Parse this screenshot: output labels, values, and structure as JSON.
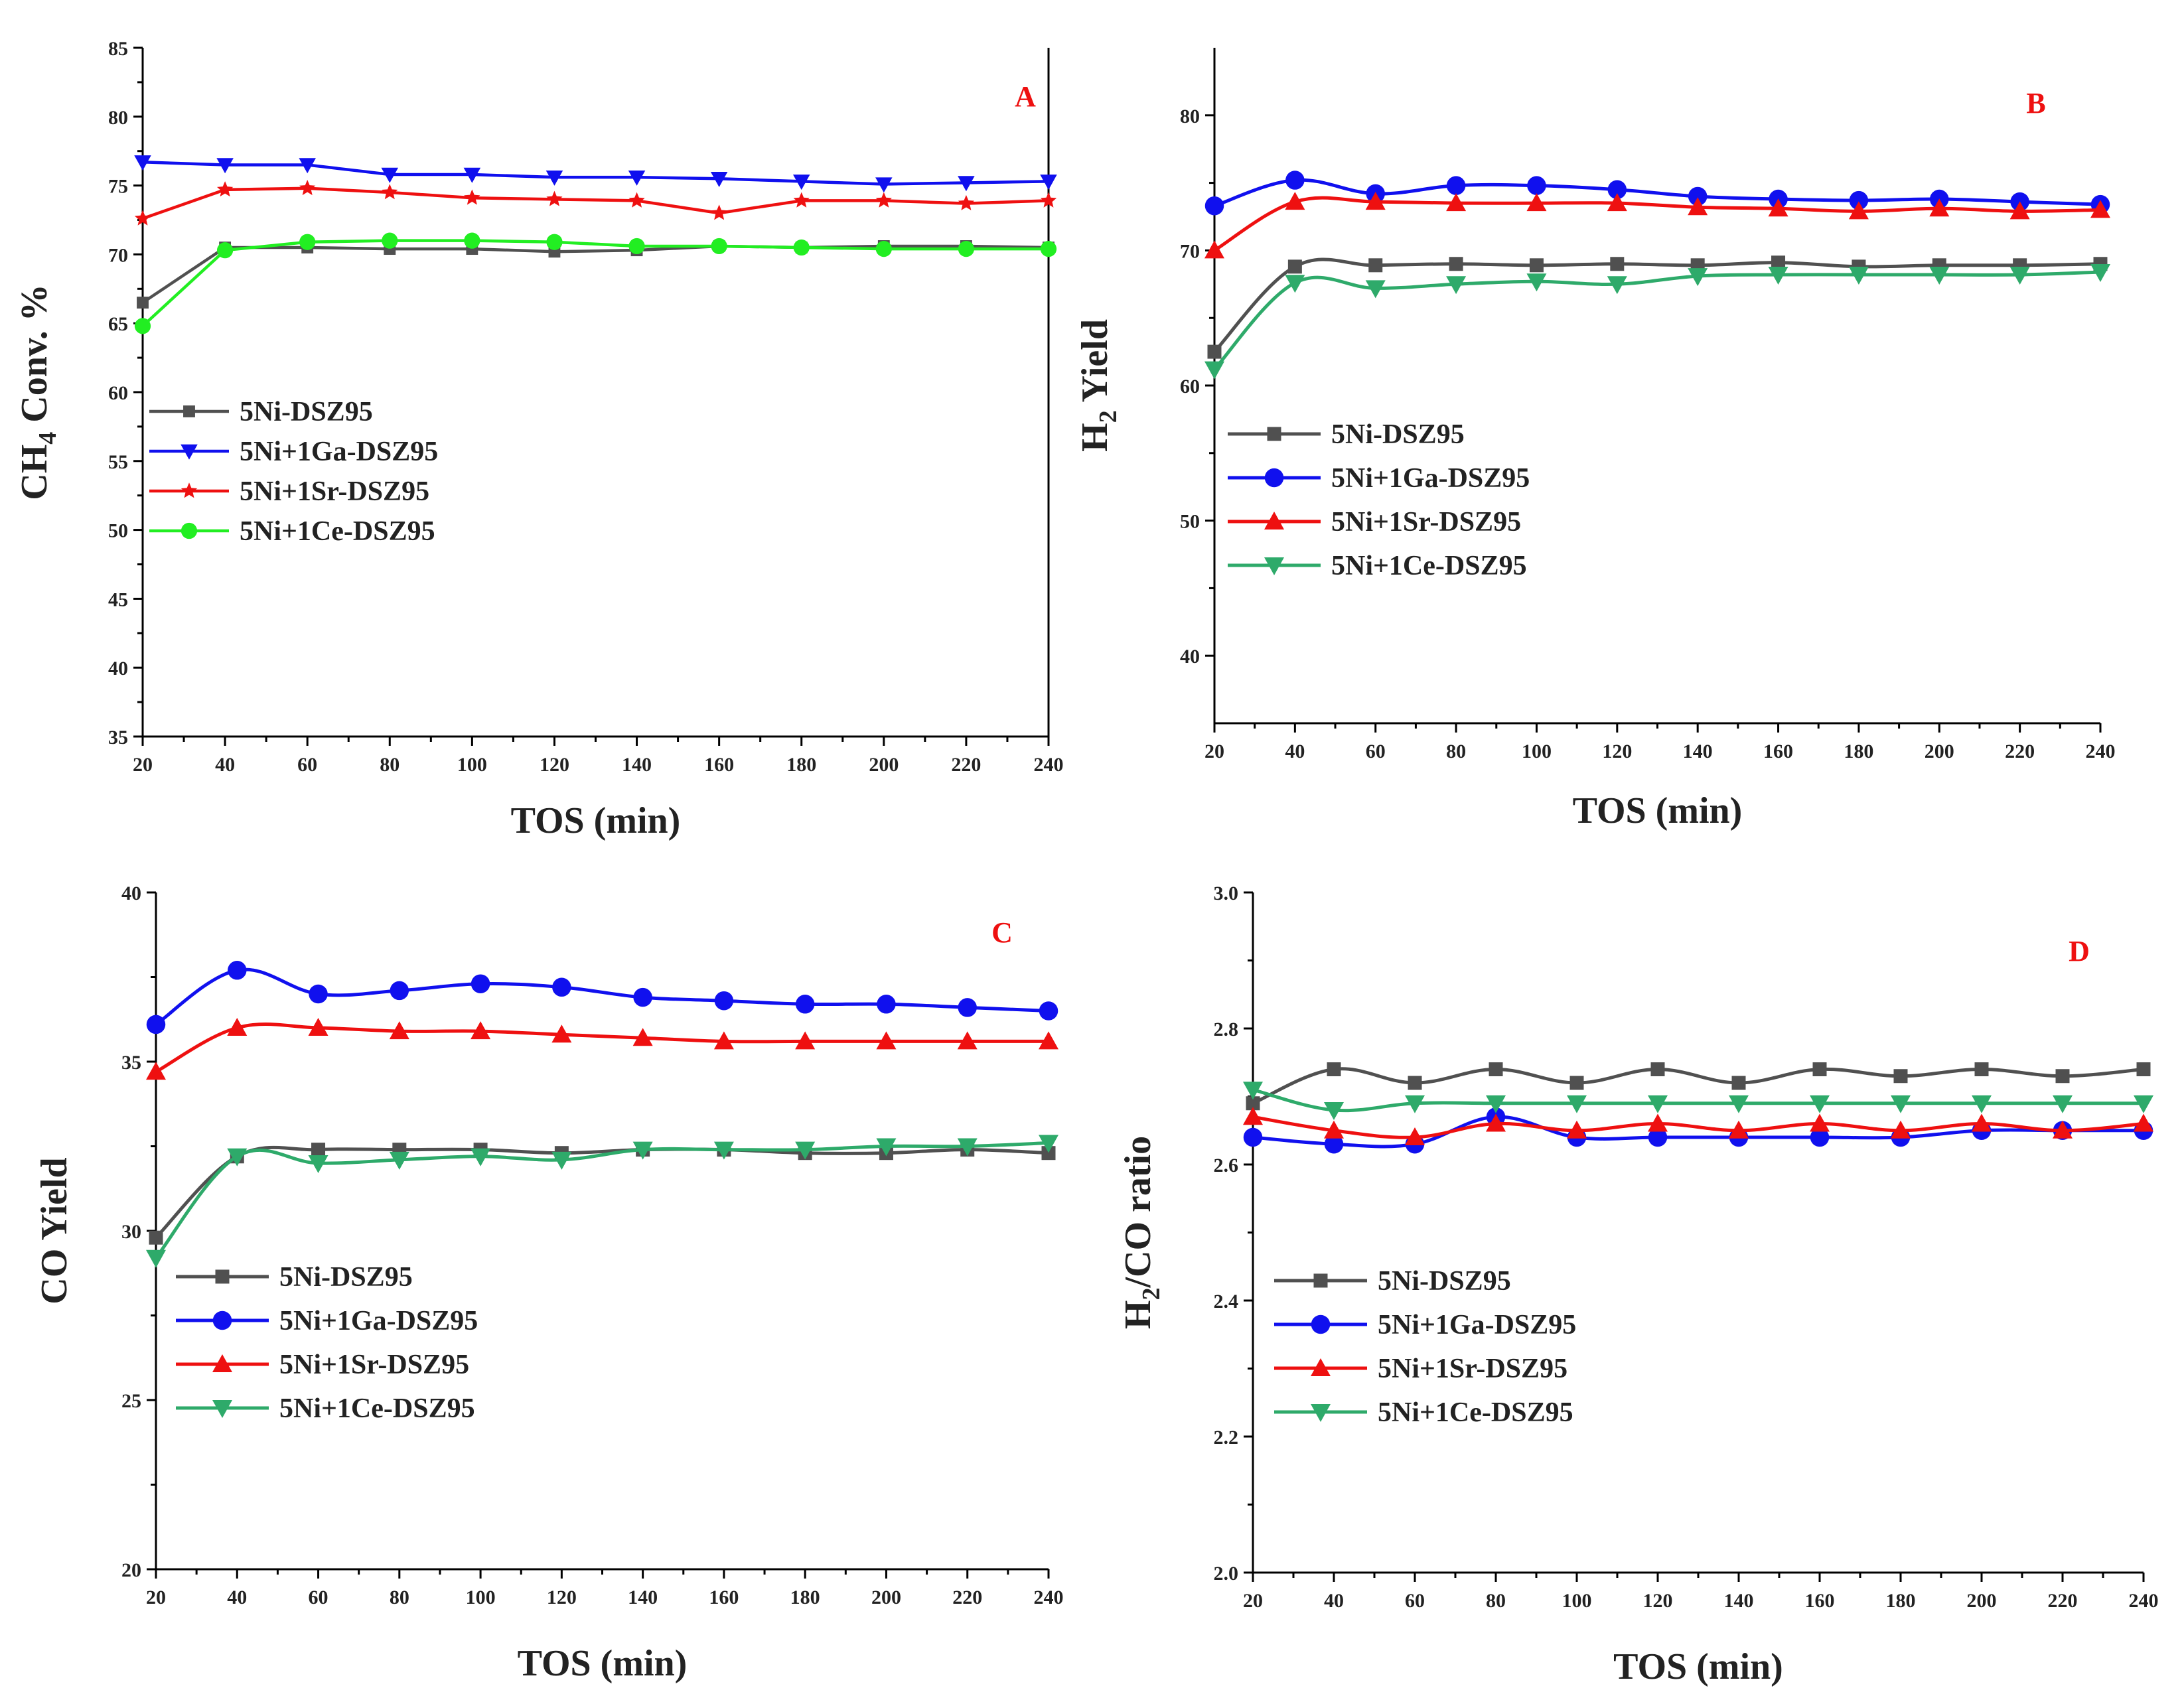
{
  "colors": {
    "5Ni-DSZ95": "#505050",
    "5Ni+1Ga-DSZ95": "#1010ee",
    "5Ni+1Sr-DSZ95": "#ee1010",
    "5Ni+1Ce-DSZ95_A": "#22ee22",
    "5Ni+1Ce-DSZ95": "#2eaa6a",
    "panel_letter": "#ee1010"
  },
  "chart_data": [
    {
      "type": "line",
      "panel_letter": "A",
      "xlabel": "TOS (min)",
      "ylabel": "CH4 Conv. %",
      "xlim": [
        20,
        240
      ],
      "ylim": [
        35,
        85
      ],
      "x_ticks": [
        20,
        40,
        60,
        80,
        100,
        120,
        140,
        160,
        180,
        200,
        220,
        240
      ],
      "y_ticks": [
        35,
        40,
        45,
        50,
        55,
        60,
        65,
        70,
        75,
        80,
        85
      ],
      "x": [
        20,
        40,
        60,
        80,
        100,
        120,
        140,
        160,
        180,
        200,
        220,
        240
      ],
      "legend_position": "middle-left",
      "series": [
        {
          "name": "5Ni-DSZ95",
          "marker": "square",
          "values": [
            66.5,
            70.5,
            70.5,
            70.4,
            70.4,
            70.2,
            70.3,
            70.6,
            70.5,
            70.6,
            70.6,
            70.5
          ]
        },
        {
          "name": "5Ni+1Ga-DSZ95",
          "marker": "triangle-down",
          "values": [
            76.7,
            76.5,
            76.5,
            75.8,
            75.8,
            75.6,
            75.6,
            75.5,
            75.3,
            75.1,
            75.2,
            75.3
          ]
        },
        {
          "name": "5Ni+1Sr-DSZ95",
          "marker": "star",
          "values": [
            72.6,
            74.7,
            74.8,
            74.5,
            74.1,
            74.0,
            73.9,
            73.0,
            73.9,
            73.9,
            73.7,
            73.9
          ]
        },
        {
          "name": "5Ni+1Ce-DSZ95",
          "marker": "circle",
          "values": [
            64.8,
            70.3,
            70.9,
            71.0,
            71.0,
            70.9,
            70.6,
            70.6,
            70.5,
            70.4,
            70.4,
            70.4
          ]
        }
      ]
    },
    {
      "type": "line",
      "panel_letter": "B",
      "xlabel": "TOS (min)",
      "ylabel": "H2 Yield",
      "xlim": [
        20,
        240
      ],
      "ylim": [
        35,
        85
      ],
      "x_ticks": [
        20,
        40,
        60,
        80,
        100,
        120,
        140,
        160,
        180,
        200,
        220,
        240
      ],
      "y_ticks": [
        40,
        50,
        60,
        70,
        80
      ],
      "x": [
        20,
        40,
        60,
        80,
        100,
        120,
        140,
        160,
        180,
        200,
        220,
        240
      ],
      "legend_position": "middle-left",
      "series": [
        {
          "name": "5Ni-DSZ95",
          "marker": "square",
          "values": [
            62.5,
            68.8,
            68.9,
            69.0,
            68.9,
            69.0,
            68.9,
            69.1,
            68.8,
            68.9,
            68.9,
            69.0
          ]
        },
        {
          "name": "5Ni+1Ga-DSZ95",
          "marker": "circle",
          "values": [
            73.3,
            75.2,
            74.2,
            74.8,
            74.8,
            74.5,
            74.0,
            73.8,
            73.7,
            73.8,
            73.6,
            73.4
          ]
        },
        {
          "name": "5Ni+1Sr-DSZ95",
          "marker": "triangle-up",
          "values": [
            70.0,
            73.6,
            73.6,
            73.5,
            73.5,
            73.5,
            73.2,
            73.1,
            72.9,
            73.1,
            72.9,
            73.0
          ]
        },
        {
          "name": "5Ni+1Ce-DSZ95",
          "marker": "triangle-down",
          "values": [
            61.2,
            67.6,
            67.2,
            67.5,
            67.7,
            67.5,
            68.1,
            68.2,
            68.2,
            68.2,
            68.2,
            68.4
          ]
        }
      ]
    },
    {
      "type": "line",
      "panel_letter": "C",
      "xlabel": "TOS (min)",
      "ylabel": "CO Yield",
      "xlim": [
        20,
        240
      ],
      "ylim": [
        20,
        40
      ],
      "x_ticks": [
        20,
        40,
        60,
        80,
        100,
        120,
        140,
        160,
        180,
        200,
        220,
        240
      ],
      "y_ticks": [
        20,
        25,
        30,
        35,
        40
      ],
      "x": [
        20,
        40,
        60,
        80,
        100,
        120,
        140,
        160,
        180,
        200,
        220,
        240
      ],
      "legend_position": "middle-left",
      "series": [
        {
          "name": "5Ni-DSZ95",
          "marker": "square",
          "values": [
            29.8,
            32.2,
            32.4,
            32.4,
            32.4,
            32.3,
            32.4,
            32.4,
            32.3,
            32.3,
            32.4,
            32.3
          ]
        },
        {
          "name": "5Ni+1Ga-DSZ95",
          "marker": "circle",
          "values": [
            36.1,
            37.7,
            37.0,
            37.1,
            37.3,
            37.2,
            36.9,
            36.8,
            36.7,
            36.7,
            36.6,
            36.5
          ]
        },
        {
          "name": "5Ni+1Sr-DSZ95",
          "marker": "triangle-up",
          "values": [
            34.7,
            36.0,
            36.0,
            35.9,
            35.9,
            35.8,
            35.7,
            35.6,
            35.6,
            35.6,
            35.6,
            35.6
          ]
        },
        {
          "name": "5Ni+1Ce-DSZ95",
          "marker": "triangle-down",
          "values": [
            29.2,
            32.2,
            32.0,
            32.1,
            32.2,
            32.1,
            32.4,
            32.4,
            32.4,
            32.5,
            32.5,
            32.6
          ]
        }
      ]
    },
    {
      "type": "line",
      "panel_letter": "D",
      "xlabel": "TOS (min)",
      "ylabel": "H2/CO ratio",
      "xlim": [
        20,
        240
      ],
      "ylim": [
        2.0,
        3.0
      ],
      "x_ticks": [
        20,
        40,
        60,
        80,
        100,
        120,
        140,
        160,
        180,
        200,
        220,
        240
      ],
      "y_ticks": [
        "2.0",
        "2.2",
        "2.4",
        "2.6",
        "2.8",
        "3.0"
      ],
      "x": [
        20,
        40,
        60,
        80,
        100,
        120,
        140,
        160,
        180,
        200,
        220,
        240
      ],
      "legend_position": "middle-left",
      "series": [
        {
          "name": "5Ni-DSZ95",
          "marker": "square",
          "values": [
            2.69,
            2.74,
            2.72,
            2.74,
            2.72,
            2.74,
            2.72,
            2.74,
            2.73,
            2.74,
            2.73,
            2.74
          ]
        },
        {
          "name": "5Ni+1Ga-DSZ95",
          "marker": "circle",
          "values": [
            2.64,
            2.63,
            2.63,
            2.67,
            2.64,
            2.64,
            2.64,
            2.64,
            2.64,
            2.65,
            2.65,
            2.65
          ]
        },
        {
          "name": "5Ni+1Sr-DSZ95",
          "marker": "triangle-up",
          "values": [
            2.67,
            2.65,
            2.64,
            2.66,
            2.65,
            2.66,
            2.65,
            2.66,
            2.65,
            2.66,
            2.65,
            2.66
          ]
        },
        {
          "name": "5Ni+1Ce-DSZ95",
          "marker": "triangle-down",
          "values": [
            2.71,
            2.68,
            2.69,
            2.69,
            2.69,
            2.69,
            2.69,
            2.69,
            2.69,
            2.69,
            2.69,
            2.69
          ]
        }
      ]
    }
  ]
}
